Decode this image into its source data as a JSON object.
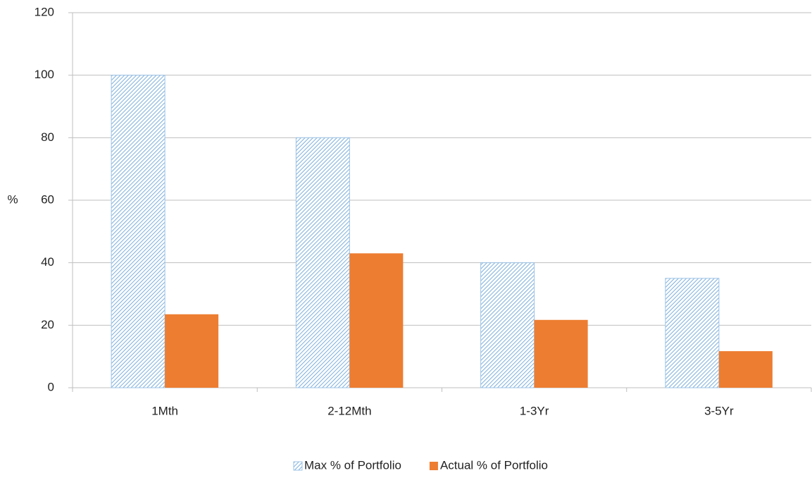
{
  "chart_data": {
    "type": "bar",
    "y_label": "%",
    "categories": [
      "1Mth",
      "2-12Mth",
      "1-3Yr",
      "3-5Yr"
    ],
    "series": [
      {
        "name": "Max % of Portfolio",
        "color": "#5b9bd5",
        "pattern": "hatch",
        "values": [
          100,
          80,
          40,
          35
        ]
      },
      {
        "name": "Actual % of Portfolio",
        "color": "#ed7d31",
        "values": [
          23.5,
          43,
          21.7,
          11.7
        ]
      }
    ],
    "ylim": [
      0,
      120
    ],
    "yticks": [
      0,
      20,
      40,
      60,
      80,
      100,
      120
    ],
    "grid": true,
    "legend": "bottom"
  }
}
